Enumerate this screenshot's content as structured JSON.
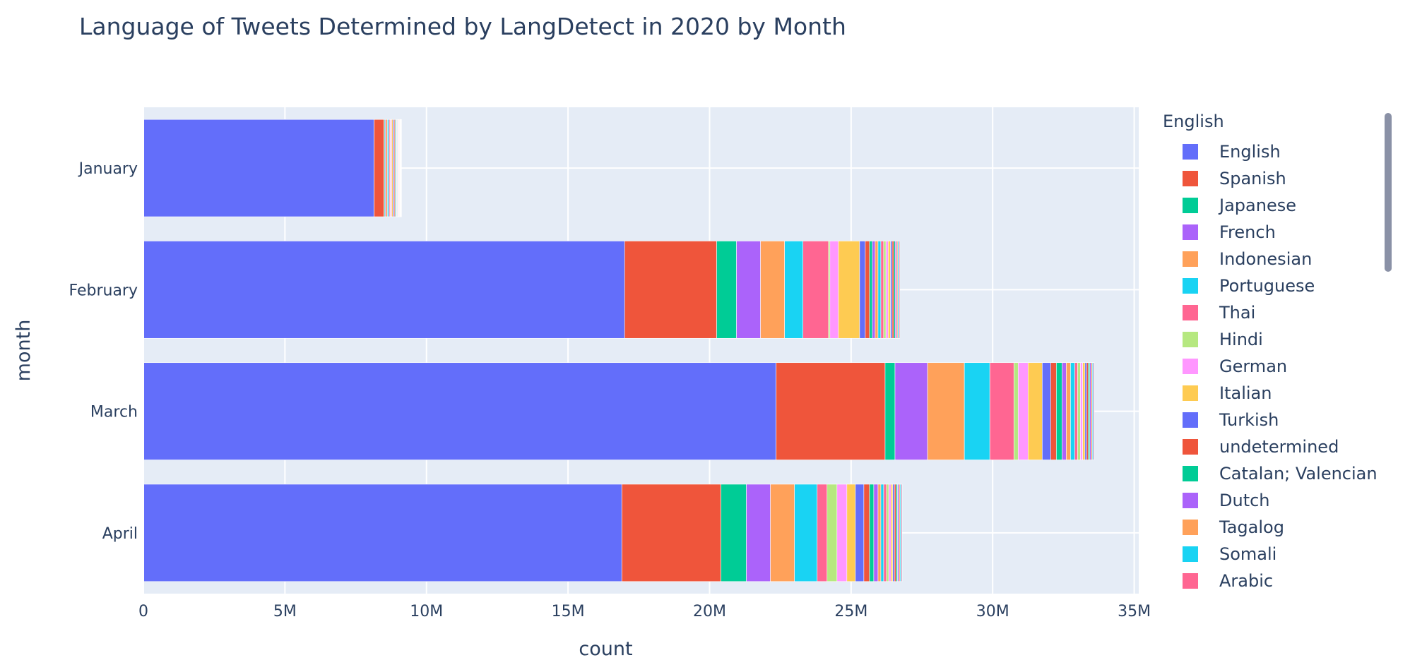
{
  "chart_data": {
    "type": "bar",
    "orientation": "horizontal",
    "barmode": "stack",
    "title": "Language of Tweets Determined by LangDetect in 2020 by Month",
    "xlabel": "count",
    "ylabel": "month",
    "xlim": [
      0,
      35000000
    ],
    "x_ticks": [
      0,
      5000000,
      10000000,
      15000000,
      20000000,
      25000000,
      30000000,
      35000000
    ],
    "x_tick_labels": [
      "0",
      "5M",
      "10M",
      "15M",
      "20M",
      "25M",
      "30M",
      "35M"
    ],
    "categories": [
      "January",
      "February",
      "March",
      "April"
    ],
    "grid": true,
    "legend_title": "English",
    "legend_position": "right",
    "series": [
      {
        "name": "English",
        "color": "#636efa",
        "values": [
          8150000,
          17000000,
          22350000,
          16900000
        ]
      },
      {
        "name": "Spanish",
        "color": "#ef553b",
        "values": [
          350000,
          3250000,
          3850000,
          3500000
        ]
      },
      {
        "name": "Japanese",
        "color": "#00cc96",
        "values": [
          30000,
          700000,
          350000,
          900000
        ]
      },
      {
        "name": "French",
        "color": "#ab63fa",
        "values": [
          30000,
          850000,
          1150000,
          850000
        ]
      },
      {
        "name": "Indonesian",
        "color": "#ffa15a",
        "values": [
          60000,
          850000,
          1300000,
          850000
        ]
      },
      {
        "name": "Portuguese",
        "color": "#19d3f3",
        "values": [
          50000,
          650000,
          900000,
          800000
        ]
      },
      {
        "name": "Thai",
        "color": "#ff6692",
        "values": [
          40000,
          900000,
          850000,
          350000
        ]
      },
      {
        "name": "Hindi",
        "color": "#b6e880",
        "values": [
          20000,
          50000,
          150000,
          350000
        ]
      },
      {
        "name": "German",
        "color": "#ff97ff",
        "values": [
          40000,
          300000,
          350000,
          350000
        ]
      },
      {
        "name": "Italian",
        "color": "#fecb52",
        "values": [
          50000,
          750000,
          500000,
          300000
        ]
      },
      {
        "name": "Turkish",
        "color": "#636efa",
        "values": [
          40000,
          200000,
          300000,
          300000
        ]
      },
      {
        "name": "undetermined",
        "color": "#ef553b",
        "values": [
          30000,
          150000,
          200000,
          200000
        ]
      },
      {
        "name": "Catalan; Valencian",
        "color": "#00cc96",
        "values": [
          30000,
          100000,
          200000,
          150000
        ]
      },
      {
        "name": "Dutch",
        "color": "#ab63fa",
        "values": [
          20000,
          100000,
          150000,
          150000
        ]
      },
      {
        "name": "Tagalog",
        "color": "#ffa15a",
        "values": [
          20000,
          100000,
          150000,
          100000
        ]
      },
      {
        "name": "Somali",
        "color": "#19d3f3",
        "values": [
          20000,
          100000,
          150000,
          100000
        ]
      },
      {
        "name": "Arabic",
        "color": "#ff6692",
        "values": [
          20000,
          100000,
          100000,
          100000
        ]
      },
      {
        "name": "",
        "color": "#b6e880",
        "values": [
          15000,
          80000,
          100000,
          80000
        ]
      },
      {
        "name": "",
        "color": "#ff97ff",
        "values": [
          15000,
          80000,
          80000,
          80000
        ]
      },
      {
        "name": "",
        "color": "#fecb52",
        "values": [
          15000,
          80000,
          80000,
          60000
        ]
      },
      {
        "name": "",
        "color": "#636efa",
        "values": [
          10000,
          60000,
          60000,
          60000
        ]
      },
      {
        "name": "",
        "color": "#ef553b",
        "values": [
          10000,
          60000,
          60000,
          60000
        ]
      },
      {
        "name": "",
        "color": "#00cc96",
        "values": [
          10000,
          50000,
          50000,
          50000
        ]
      },
      {
        "name": "",
        "color": "#ab63fa",
        "values": [
          10000,
          50000,
          50000,
          50000
        ]
      },
      {
        "name": "",
        "color": "#ffa15a",
        "values": [
          10000,
          40000,
          40000,
          40000
        ]
      },
      {
        "name": "",
        "color": "#19d3f3",
        "values": [
          10000,
          40000,
          40000,
          40000
        ]
      },
      {
        "name": "",
        "color": "#ff6692",
        "values": [
          10000,
          30000,
          30000,
          30000
        ]
      }
    ]
  }
}
